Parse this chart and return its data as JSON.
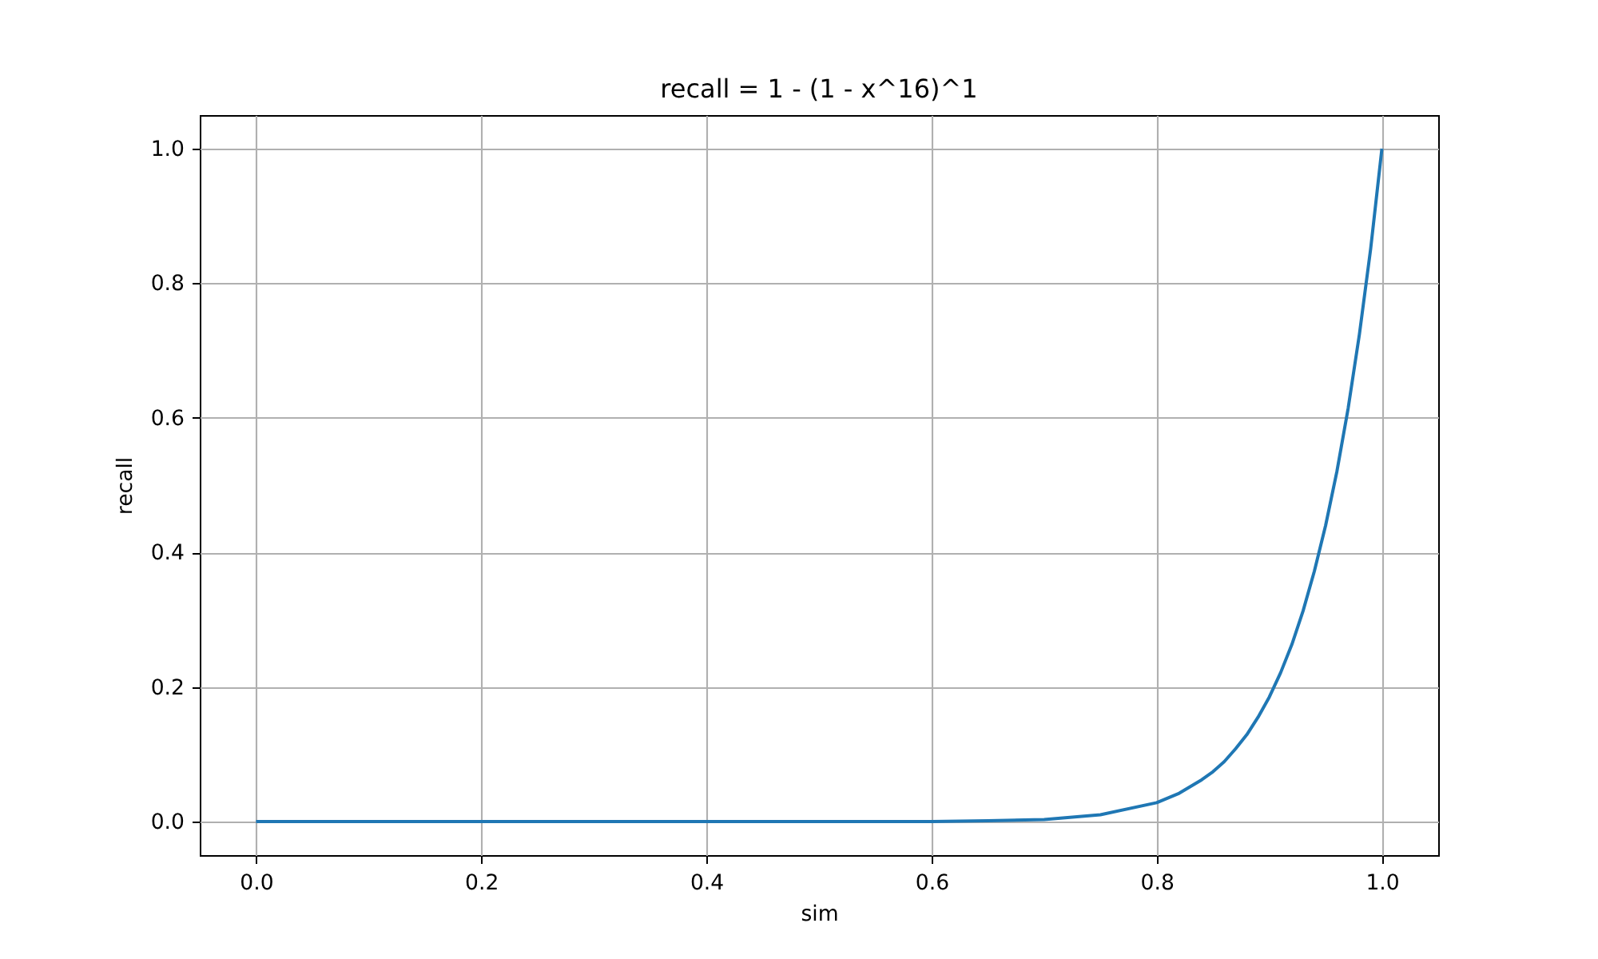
{
  "chart_data": {
    "type": "line",
    "title": "recall = 1 - (1 - x^16)^1",
    "xlabel": "sim",
    "ylabel": "recall",
    "x": [
      0,
      0.1,
      0.2,
      0.3,
      0.4,
      0.5,
      0.6,
      0.65,
      0.7,
      0.75,
      0.8,
      0.82,
      0.84,
      0.85,
      0.86,
      0.87,
      0.88,
      0.89,
      0.9,
      0.91,
      0.92,
      0.93,
      0.94,
      0.95,
      0.96,
      0.97,
      0.98,
      0.99,
      1.0
    ],
    "series": [
      {
        "color": "#1f77b4",
        "values": [
          0,
          0,
          0,
          0,
          0,
          0,
          0,
          0.001,
          0.003,
          0.01,
          0.028,
          0.042,
          0.062,
          0.074,
          0.089,
          0.108,
          0.129,
          0.155,
          0.185,
          0.221,
          0.263,
          0.313,
          0.372,
          0.44,
          0.52,
          0.614,
          0.724,
          0.851,
          1.0
        ]
      }
    ],
    "xlim": [
      -0.05,
      1.05
    ],
    "ylim": [
      -0.05,
      1.05
    ],
    "xticks": [
      {
        "value": 0,
        "label": "0.0"
      },
      0.2,
      0.4,
      0.6,
      0.8,
      {
        "value": 1,
        "label": "1.0"
      }
    ],
    "yticks": [
      {
        "value": 0,
        "label": "0.0"
      },
      0.2,
      0.4,
      0.6,
      0.8,
      {
        "value": 1,
        "label": "1.0"
      }
    ],
    "grid": true
  }
}
